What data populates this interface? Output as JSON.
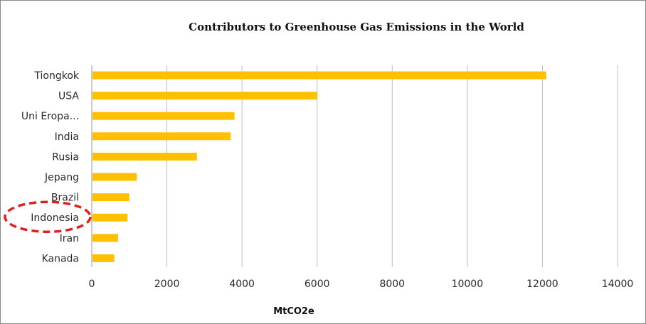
{
  "chart_data": {
    "type": "bar",
    "orientation": "horizontal",
    "title": "Contributors to Greenhouse Gas Emissions in the World",
    "xlabel": "MtCO2e",
    "ylabel": "",
    "categories": [
      "Tiongkok",
      "USA",
      "Uni Eropa...",
      "India",
      "Rusia",
      "Jepang",
      "Brazil",
      "Indonesia",
      "Iran",
      "Kanada"
    ],
    "values": [
      12100,
      6000,
      3800,
      3700,
      2800,
      1200,
      1000,
      950,
      700,
      600
    ],
    "xlim": [
      0,
      14000
    ],
    "xticks": [
      "0",
      "2000",
      "4000",
      "6000",
      "8000",
      "10000",
      "12000",
      "14000"
    ],
    "grid": "vertical",
    "bar_color": "#FFC000",
    "highlight": {
      "category": "Indonesia",
      "style": "dashed-ellipse",
      "color": "#E02020"
    }
  }
}
